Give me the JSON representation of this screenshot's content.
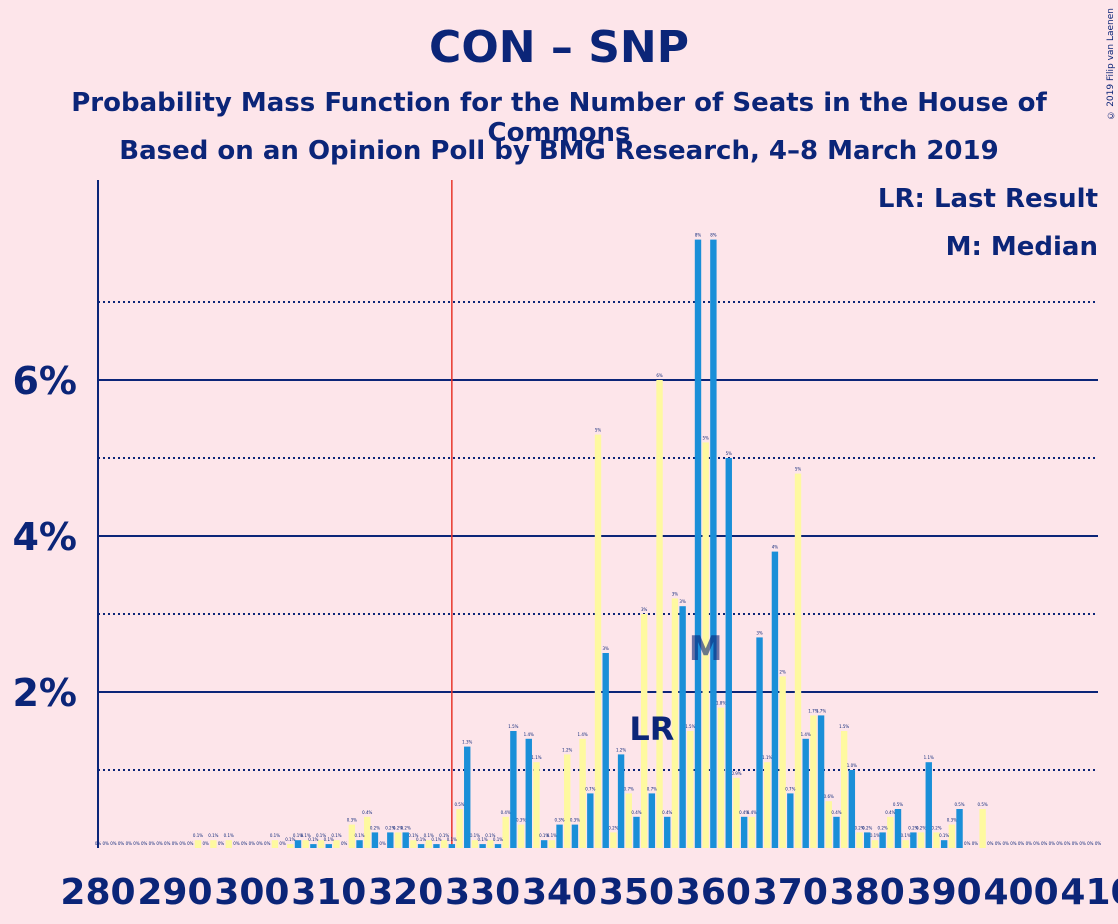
{
  "chart_data": {
    "type": "bar",
    "title": "CON – SNP",
    "subtitle": "Probability Mass Function for the Number of Seats in the House of Commons",
    "subtitle2": "Based on an Opinion Poll by BMG Research, 4–8 March 2019",
    "copyright": "© 2019 Filip van Laenen",
    "legend": [
      "LR: Last Result",
      "M: Median"
    ],
    "last_result_label": "LR",
    "median_label": "M",
    "last_result": 352,
    "median": 359,
    "majority_line": 326,
    "xlim": [
      280,
      410
    ],
    "ylim": [
      0,
      8.5
    ],
    "x_ticks": [
      280,
      290,
      300,
      310,
      320,
      330,
      340,
      350,
      360,
      370,
      380,
      390,
      400,
      410
    ],
    "y_tick_labels": [
      {
        "value": 2,
        "label": "2%"
      },
      {
        "value": 4,
        "label": "4%"
      },
      {
        "value": 6,
        "label": "6%"
      }
    ],
    "y_minor_grid": [
      1,
      3,
      5,
      7
    ],
    "colors": {
      "blue": "#1a8fd8",
      "yellow": "#fef9a0",
      "text": "#0b2578",
      "majority": "#e8352b",
      "background": "#fde5ea"
    },
    "series": [
      {
        "name": "blue",
        "x": [
          280,
          282,
          284,
          286,
          288,
          290,
          292,
          294,
          296,
          298,
          300,
          302,
          304,
          306,
          308,
          310,
          312,
          314,
          316,
          318,
          320,
          322,
          324,
          326,
          328,
          330,
          332,
          334,
          336,
          338,
          340,
          342,
          344,
          346,
          348,
          350,
          352,
          354,
          356,
          358,
          360,
          362,
          364,
          366,
          368,
          370,
          372,
          374,
          376,
          378,
          380,
          382,
          384,
          386,
          388,
          390,
          392,
          394,
          396,
          398,
          400,
          402,
          404,
          406,
          408,
          410
        ],
        "values": [
          0,
          0,
          0,
          0,
          0,
          0,
          0,
          0,
          0,
          0,
          0,
          0,
          0,
          0.1,
          0.05,
          0.05,
          0,
          0.1,
          0.2,
          0.2,
          0.2,
          0.05,
          0.05,
          0.05,
          1.3,
          0.05,
          0.05,
          1.5,
          1.4,
          0.1,
          0.3,
          0.3,
          0.7,
          2.5,
          1.2,
          0.4,
          0.7,
          0.4,
          3.1,
          7.8,
          7.8,
          5.0,
          0.4,
          2.7,
          3.8,
          0.7,
          1.4,
          1.7,
          0.4,
          1.0,
          0.2,
          0.2,
          0.5,
          0.2,
          1.1,
          0.1,
          0.5,
          0,
          0,
          0,
          0,
          0,
          0,
          0,
          0,
          0
        ]
      },
      {
        "name": "yellow",
        "x": [
          281,
          283,
          285,
          287,
          289,
          291,
          293,
          295,
          297,
          299,
          301,
          303,
          305,
          307,
          309,
          311,
          313,
          315,
          317,
          319,
          321,
          323,
          325,
          327,
          329,
          331,
          333,
          335,
          337,
          339,
          341,
          343,
          345,
          347,
          349,
          351,
          353,
          355,
          357,
          359,
          361,
          363,
          365,
          367,
          369,
          371,
          373,
          375,
          377,
          379,
          381,
          383,
          385,
          387,
          389,
          391,
          393,
          395,
          397,
          399,
          401,
          403,
          405,
          407,
          409
        ],
        "values": [
          0,
          0,
          0,
          0,
          0,
          0,
          0.1,
          0.1,
          0.1,
          0,
          0,
          0.1,
          0.05,
          0.1,
          0.1,
          0.1,
          0.3,
          0.4,
          0,
          0.2,
          0.1,
          0.1,
          0.1,
          0.5,
          0.1,
          0.1,
          0.4,
          0.3,
          1.1,
          0.1,
          1.2,
          1.4,
          5.3,
          0.2,
          0.7,
          3.0,
          6.0,
          3.2,
          1.5,
          5.2,
          1.8,
          0.9,
          0.4,
          1.1,
          2.2,
          4.8,
          1.7,
          0.6,
          1.5,
          0.2,
          0.1,
          0.4,
          0.1,
          0.2,
          0.2,
          0.3,
          0,
          0.5,
          0,
          0,
          0,
          0,
          0,
          0,
          0
        ]
      }
    ]
  }
}
